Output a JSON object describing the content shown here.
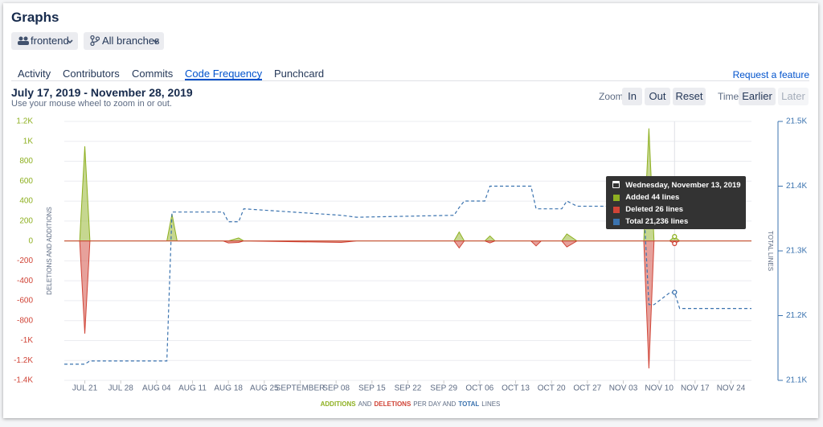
{
  "header": {
    "title": "Graphs",
    "repo_filter": "frontend",
    "branch_filter": "All branches"
  },
  "tabs": [
    "Activity",
    "Contributors",
    "Commits",
    "Code Frequency",
    "Punchcard"
  ],
  "active_tab": 3,
  "request_link": "Request a feature",
  "range": {
    "title": "July 17, 2019 - November 28, 2019",
    "hint": "Use your mouse wheel to zoom in or out."
  },
  "controls": {
    "zoom_label": "Zoom",
    "zoom_in": "In",
    "zoom_out": "Out",
    "zoom_reset": "Reset",
    "time_label": "Time",
    "earlier": "Earlier",
    "later": "Later"
  },
  "chart_data": {
    "type": "area",
    "ylabel": "DELETIONS AND ADDITIONS",
    "y2label": "TOTAL LINES",
    "x": [
      "2019-07-17",
      "2019-07-20",
      "2019-07-21",
      "2019-07-22",
      "2019-08-06",
      "2019-08-07",
      "2019-08-08",
      "2019-08-17",
      "2019-08-18",
      "2019-08-20",
      "2019-08-21",
      "2019-09-09",
      "2019-09-12",
      "2019-10-01",
      "2019-10-02",
      "2019-10-03",
      "2019-10-07",
      "2019-10-08",
      "2019-10-09",
      "2019-10-16",
      "2019-10-17",
      "2019-10-18",
      "2019-10-22",
      "2019-10-23",
      "2019-10-25",
      "2019-11-07",
      "2019-11-08",
      "2019-11-09",
      "2019-11-12",
      "2019-11-13",
      "2019-11-14",
      "2019-11-28"
    ],
    "series": [
      {
        "name": "ADDITIONS",
        "color": "#8eb021",
        "values": [
          0,
          0,
          950,
          0,
          0,
          270,
          0,
          0,
          0,
          30,
          0,
          0,
          0,
          0,
          90,
          0,
          0,
          50,
          0,
          0,
          0,
          0,
          0,
          70,
          0,
          0,
          1130,
          0,
          0,
          44,
          0,
          0
        ]
      },
      {
        "name": "DELETIONS",
        "color": "#d04437",
        "values": [
          0,
          0,
          -930,
          0,
          0,
          0,
          0,
          0,
          -20,
          -15,
          0,
          -15,
          0,
          0,
          -70,
          0,
          0,
          -20,
          0,
          0,
          -50,
          0,
          0,
          -60,
          0,
          0,
          -1280,
          0,
          0,
          -26,
          0,
          0
        ]
      },
      {
        "name": "TOTAL",
        "color": "#3b73af",
        "type": "line",
        "dashed": true,
        "axis": "y2",
        "values": [
          21125,
          21125,
          21125,
          21130,
          21130,
          21360,
          21360,
          21360,
          21345,
          21345,
          21365,
          21355,
          21352,
          21355,
          21367,
          21377,
          21377,
          21400,
          21400,
          21400,
          21365,
          21365,
          21365,
          21377,
          21369,
          21369,
          21217,
          21217,
          21235,
          21236,
          21211,
          21211
        ]
      }
    ],
    "legend_joins": [
      "AND",
      "PER DAY AND",
      "LINES"
    ],
    "xlim": [
      "2019-07-17",
      "2019-11-28"
    ],
    "xticks": [
      {
        "value": "2019-07-21",
        "label": "JUL 21"
      },
      {
        "value": "2019-07-28",
        "label": "JUL 28"
      },
      {
        "value": "2019-08-04",
        "label": "AUG 04"
      },
      {
        "value": "2019-08-11",
        "label": "AUG 11"
      },
      {
        "value": "2019-08-18",
        "label": "AUG 18"
      },
      {
        "value": "2019-08-25",
        "label": "AUG 25"
      },
      {
        "value": "2019-09-01",
        "label": "SEPTEMBER"
      },
      {
        "value": "2019-09-08",
        "label": "SEP 08"
      },
      {
        "value": "2019-09-15",
        "label": "SEP 15"
      },
      {
        "value": "2019-09-22",
        "label": "SEP 22"
      },
      {
        "value": "2019-09-29",
        "label": "SEP 29"
      },
      {
        "value": "2019-10-06",
        "label": "OCT 06"
      },
      {
        "value": "2019-10-13",
        "label": "OCT 13"
      },
      {
        "value": "2019-10-20",
        "label": "OCT 20"
      },
      {
        "value": "2019-10-27",
        "label": "OCT 27"
      },
      {
        "value": "2019-11-03",
        "label": "NOV 03"
      },
      {
        "value": "2019-11-10",
        "label": "NOV 10"
      },
      {
        "value": "2019-11-17",
        "label": "NOV 17"
      },
      {
        "value": "2019-11-24",
        "label": "NOV 24"
      }
    ],
    "ylim": [
      -1400,
      1200
    ],
    "yticks": [
      {
        "value": 1200,
        "label": "1.2K"
      },
      {
        "value": 1000,
        "label": "1K"
      },
      800,
      600,
      400,
      200,
      0,
      -200,
      -400,
      -600,
      -800,
      {
        "value": -1000,
        "label": "-1K"
      },
      {
        "value": -1200,
        "label": "-1.2K"
      },
      {
        "value": -1400,
        "label": "-1.4K"
      }
    ],
    "y2lim": [
      21100,
      21500
    ],
    "y2ticks": [
      {
        "value": 21500,
        "label": "21.5K"
      },
      {
        "value": 21400,
        "label": "21.4K"
      },
      {
        "value": 21300,
        "label": "21.3K"
      },
      {
        "value": 21200,
        "label": "21.2K"
      },
      {
        "value": 21100,
        "label": "21.1K"
      }
    ],
    "grid": true,
    "tooltip": {
      "date": "Wednesday, November 13, 2019",
      "lines": [
        "Added 44 lines",
        "Deleted 26 lines",
        "Total 21,236 lines"
      ]
    }
  }
}
